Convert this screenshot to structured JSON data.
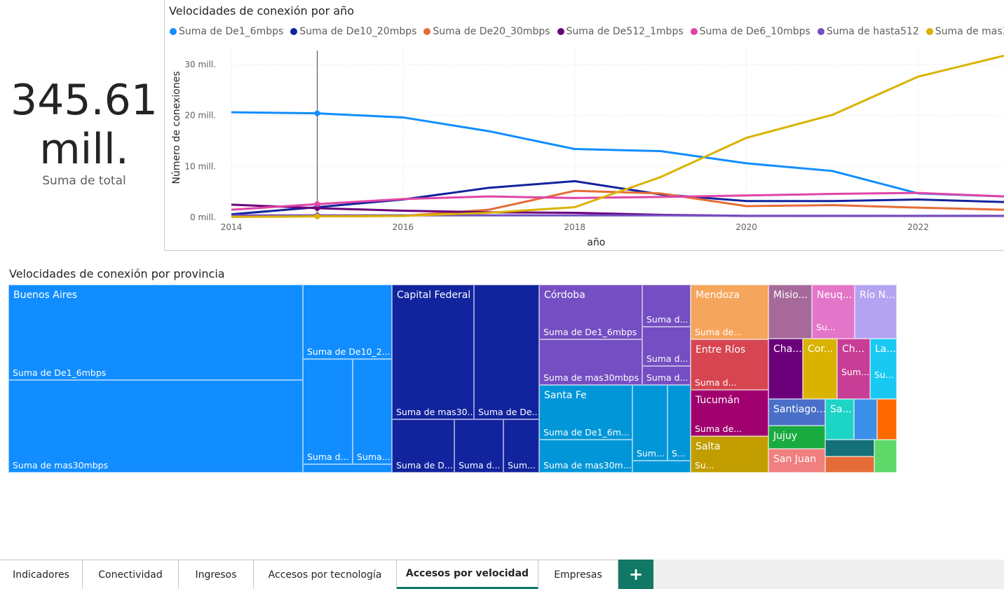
{
  "kpi": {
    "value_line1": "345.61",
    "value_line2": "mill.",
    "label": "Suma de total"
  },
  "line_chart": {
    "title": "Velocidades de conexión por año"
  },
  "treemap": {
    "title": "Velocidades de conexión por provincia"
  },
  "colors": {
    "De1_6": "#118DFF",
    "De10_20": "#12239E",
    "De20_30": "#E66C37",
    "De512_1": "#6B007B",
    "De6_10": "#E044A7",
    "hasta512": "#744EC2",
    "mas30": "#D9B300"
  },
  "chart_data": [
    {
      "type": "line",
      "title": "Velocidades de conexión por año",
      "xlabel": "año",
      "ylabel": "Número de conexiones",
      "x": [
        2014,
        2015,
        2016,
        2017,
        2018,
        2019,
        2020,
        2021,
        2022,
        2023
      ],
      "xticks": [
        "2014",
        "2016",
        "2018",
        "2020",
        "2022"
      ],
      "yticks": [
        "0 mill.",
        "10 mill.",
        "20 mill.",
        "30 mill."
      ],
      "ylim": [
        0,
        33
      ],
      "grid": true,
      "legend_position": "top",
      "series": [
        {
          "name": "Suma de De1_6mbps",
          "color": "#118DFF",
          "values": [
            20.6,
            20.4,
            19.6,
            16.9,
            13.4,
            13.0,
            10.6,
            9.1,
            4.7,
            4.1
          ]
        },
        {
          "name": "Suma de De10_20mbps",
          "color": "#12239E",
          "values": [
            0.6,
            2.0,
            3.5,
            5.8,
            7.1,
            4.5,
            3.2,
            3.2,
            3.5,
            3.0
          ]
        },
        {
          "name": "Suma de De20_30mbps",
          "color": "#E66C37",
          "values": [
            0.1,
            0.2,
            0.3,
            1.5,
            5.2,
            4.7,
            2.2,
            2.4,
            1.9,
            1.5
          ]
        },
        {
          "name": "Suma de De512_1mbps",
          "color": "#6B007B",
          "values": [
            2.5,
            1.8,
            1.3,
            1.0,
            0.9,
            0.5,
            0.3,
            0.3,
            0.3,
            0.3
          ]
        },
        {
          "name": "Suma de De6_10mbps",
          "color": "#E044A7",
          "values": [
            1.5,
            2.6,
            3.6,
            4.1,
            3.8,
            4.0,
            4.3,
            4.6,
            4.8,
            4.1
          ]
        },
        {
          "name": "Suma de hasta512",
          "color": "#744EC2",
          "values": [
            0.4,
            0.4,
            0.4,
            0.4,
            0.4,
            0.4,
            0.3,
            0.3,
            0.3,
            0.3
          ]
        },
        {
          "name": "Suma de mas30mbps",
          "color": "#D9B300",
          "values": [
            0.1,
            0.2,
            0.3,
            0.9,
            2.0,
            7.9,
            15.6,
            20.1,
            27.6,
            31.7
          ]
        }
      ]
    },
    {
      "type": "treemap",
      "title": "Velocidades de conexión por provincia",
      "provinces": [
        {
          "name": "Buenos Aires",
          "labels": [
            "Suma de De1_6mbps",
            "Suma de mas30mbps",
            "Suma de De10_2...",
            "Suma d...",
            "Suma..."
          ]
        },
        {
          "name": "Capital Federal",
          "labels": [
            "Suma de mas30...",
            "Suma de De...",
            "Suma de D...",
            "Suma d...",
            "Sum..."
          ]
        },
        {
          "name": "Córdoba",
          "labels": [
            "Suma de De1_6mbps",
            "Suma de mas30mbps",
            "Suma d...",
            "Suma d...",
            "Suma d..."
          ]
        },
        {
          "name": "Santa Fe",
          "labels": [
            "Suma de De1_6m...",
            "Suma de mas30m...",
            "Sum...",
            "S..."
          ]
        },
        {
          "name": "Mendoza",
          "labels": [
            "Suma de..."
          ]
        },
        {
          "name": "Entre Ríos",
          "labels": [
            "Suma d..."
          ]
        },
        {
          "name": "Tucumán",
          "labels": [
            "Suma de..."
          ]
        },
        {
          "name": "Salta",
          "labels": [
            "Su..."
          ]
        },
        {
          "name": "Misio...",
          "labels": []
        },
        {
          "name": "Neuq...",
          "labels": [
            "Su..."
          ]
        },
        {
          "name": "Río N...",
          "labels": []
        },
        {
          "name": "Cha...",
          "labels": []
        },
        {
          "name": "Cor...",
          "labels": []
        },
        {
          "name": "Ch...",
          "labels": [
            "Sum..."
          ]
        },
        {
          "name": "La...",
          "labels": [
            "Su..."
          ]
        },
        {
          "name": "Santiago...",
          "labels": []
        },
        {
          "name": "Sa...",
          "labels": []
        },
        {
          "name": "Jujuy",
          "labels": []
        },
        {
          "name": "San Juan",
          "labels": []
        }
      ]
    }
  ],
  "tabs": [
    {
      "label": "Indicadores",
      "active": false
    },
    {
      "label": "Conectividad",
      "active": false
    },
    {
      "label": "Ingresos",
      "active": false
    },
    {
      "label": "Accesos por tecnología",
      "active": false
    },
    {
      "label": "Accesos por velocidad",
      "active": true
    },
    {
      "label": "Empresas",
      "active": false
    }
  ],
  "add_tab": {
    "icon": "plus-icon",
    "glyph": "+"
  }
}
